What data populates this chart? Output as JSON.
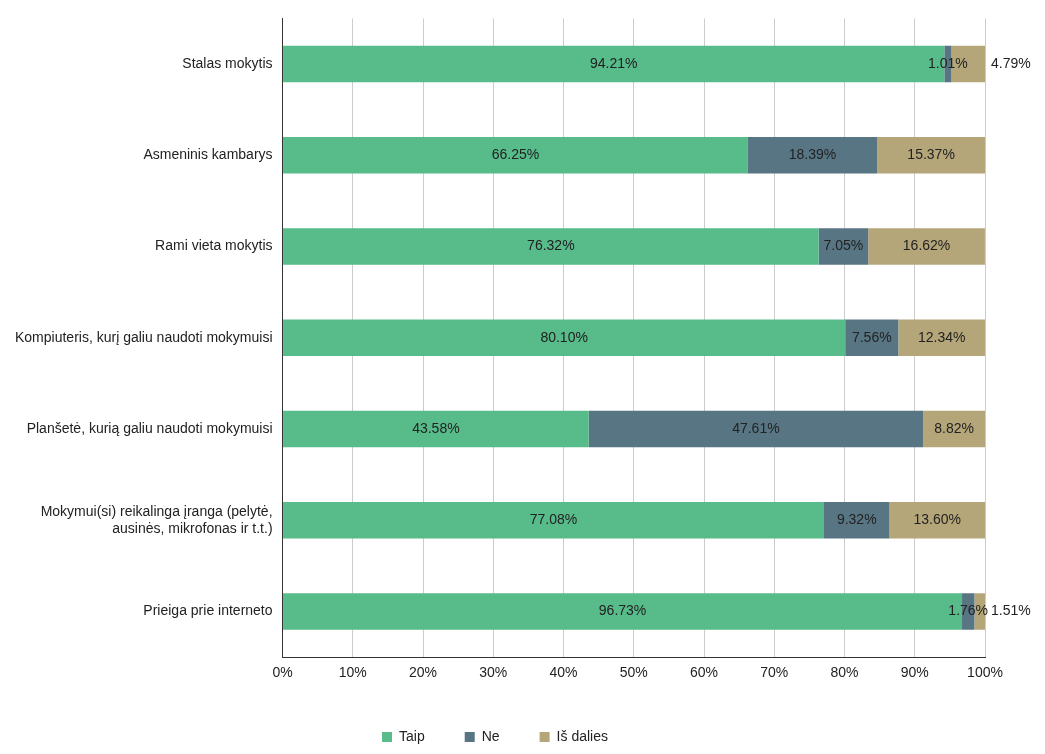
{
  "chart_data": {
    "type": "bar",
    "orientation": "horizontal",
    "stacked": true,
    "categories": [
      "Stalas mokytis",
      "Asmeninis kambarys",
      "Rami vieta mokytis",
      "Kompiuteris, kurį galiu naudoti mokymuisi",
      "Planšetė, kurią galiu naudoti mokymuisi",
      "Mokymui(si) reikalinga įranga (pelytė, ausinės, mikrofonas ir t.t.)",
      "Prieiga prie interneto"
    ],
    "series": [
      {
        "name": "Taip",
        "color": "#57bb8a",
        "values": [
          94.21,
          66.25,
          76.32,
          80.1,
          43.58,
          77.08,
          96.73
        ],
        "value_labels": [
          "94.21%",
          "66.25%",
          "76.32%",
          "80.10%",
          "43.58%",
          "77.08%",
          "96.73%"
        ]
      },
      {
        "name": "Ne",
        "color": "#587583",
        "values": [
          1.01,
          18.39,
          7.05,
          7.56,
          47.61,
          9.32,
          1.76
        ],
        "value_labels": [
          "1.01%",
          "18.39%",
          "7.05%",
          "7.56%",
          "47.61%",
          "9.32%",
          "1.76%"
        ]
      },
      {
        "name": "Iš dalies",
        "color": "#b5a67a",
        "values": [
          4.79,
          15.37,
          16.62,
          12.34,
          8.82,
          13.6,
          1.51
        ],
        "value_labels": [
          "4.79%",
          "15.37%",
          "16.62%",
          "12.34%",
          "8.82%",
          "13.60%",
          "1.51%"
        ]
      }
    ],
    "xlim": [
      0,
      100
    ],
    "xticks": [
      {
        "value": 0,
        "label": "0%"
      },
      {
        "value": 10,
        "label": "10%"
      },
      {
        "value": 20,
        "label": "20%"
      },
      {
        "value": 30,
        "label": "30%"
      },
      {
        "value": 40,
        "label": "40%"
      },
      {
        "value": 50,
        "label": "50%"
      },
      {
        "value": 60,
        "label": "60%"
      },
      {
        "value": 70,
        "label": "70%"
      },
      {
        "value": 80,
        "label": "80%"
      },
      {
        "value": 90,
        "label": "90%"
      },
      {
        "value": 100,
        "label": "100%"
      }
    ],
    "grid": "x",
    "legend": "bottom"
  }
}
